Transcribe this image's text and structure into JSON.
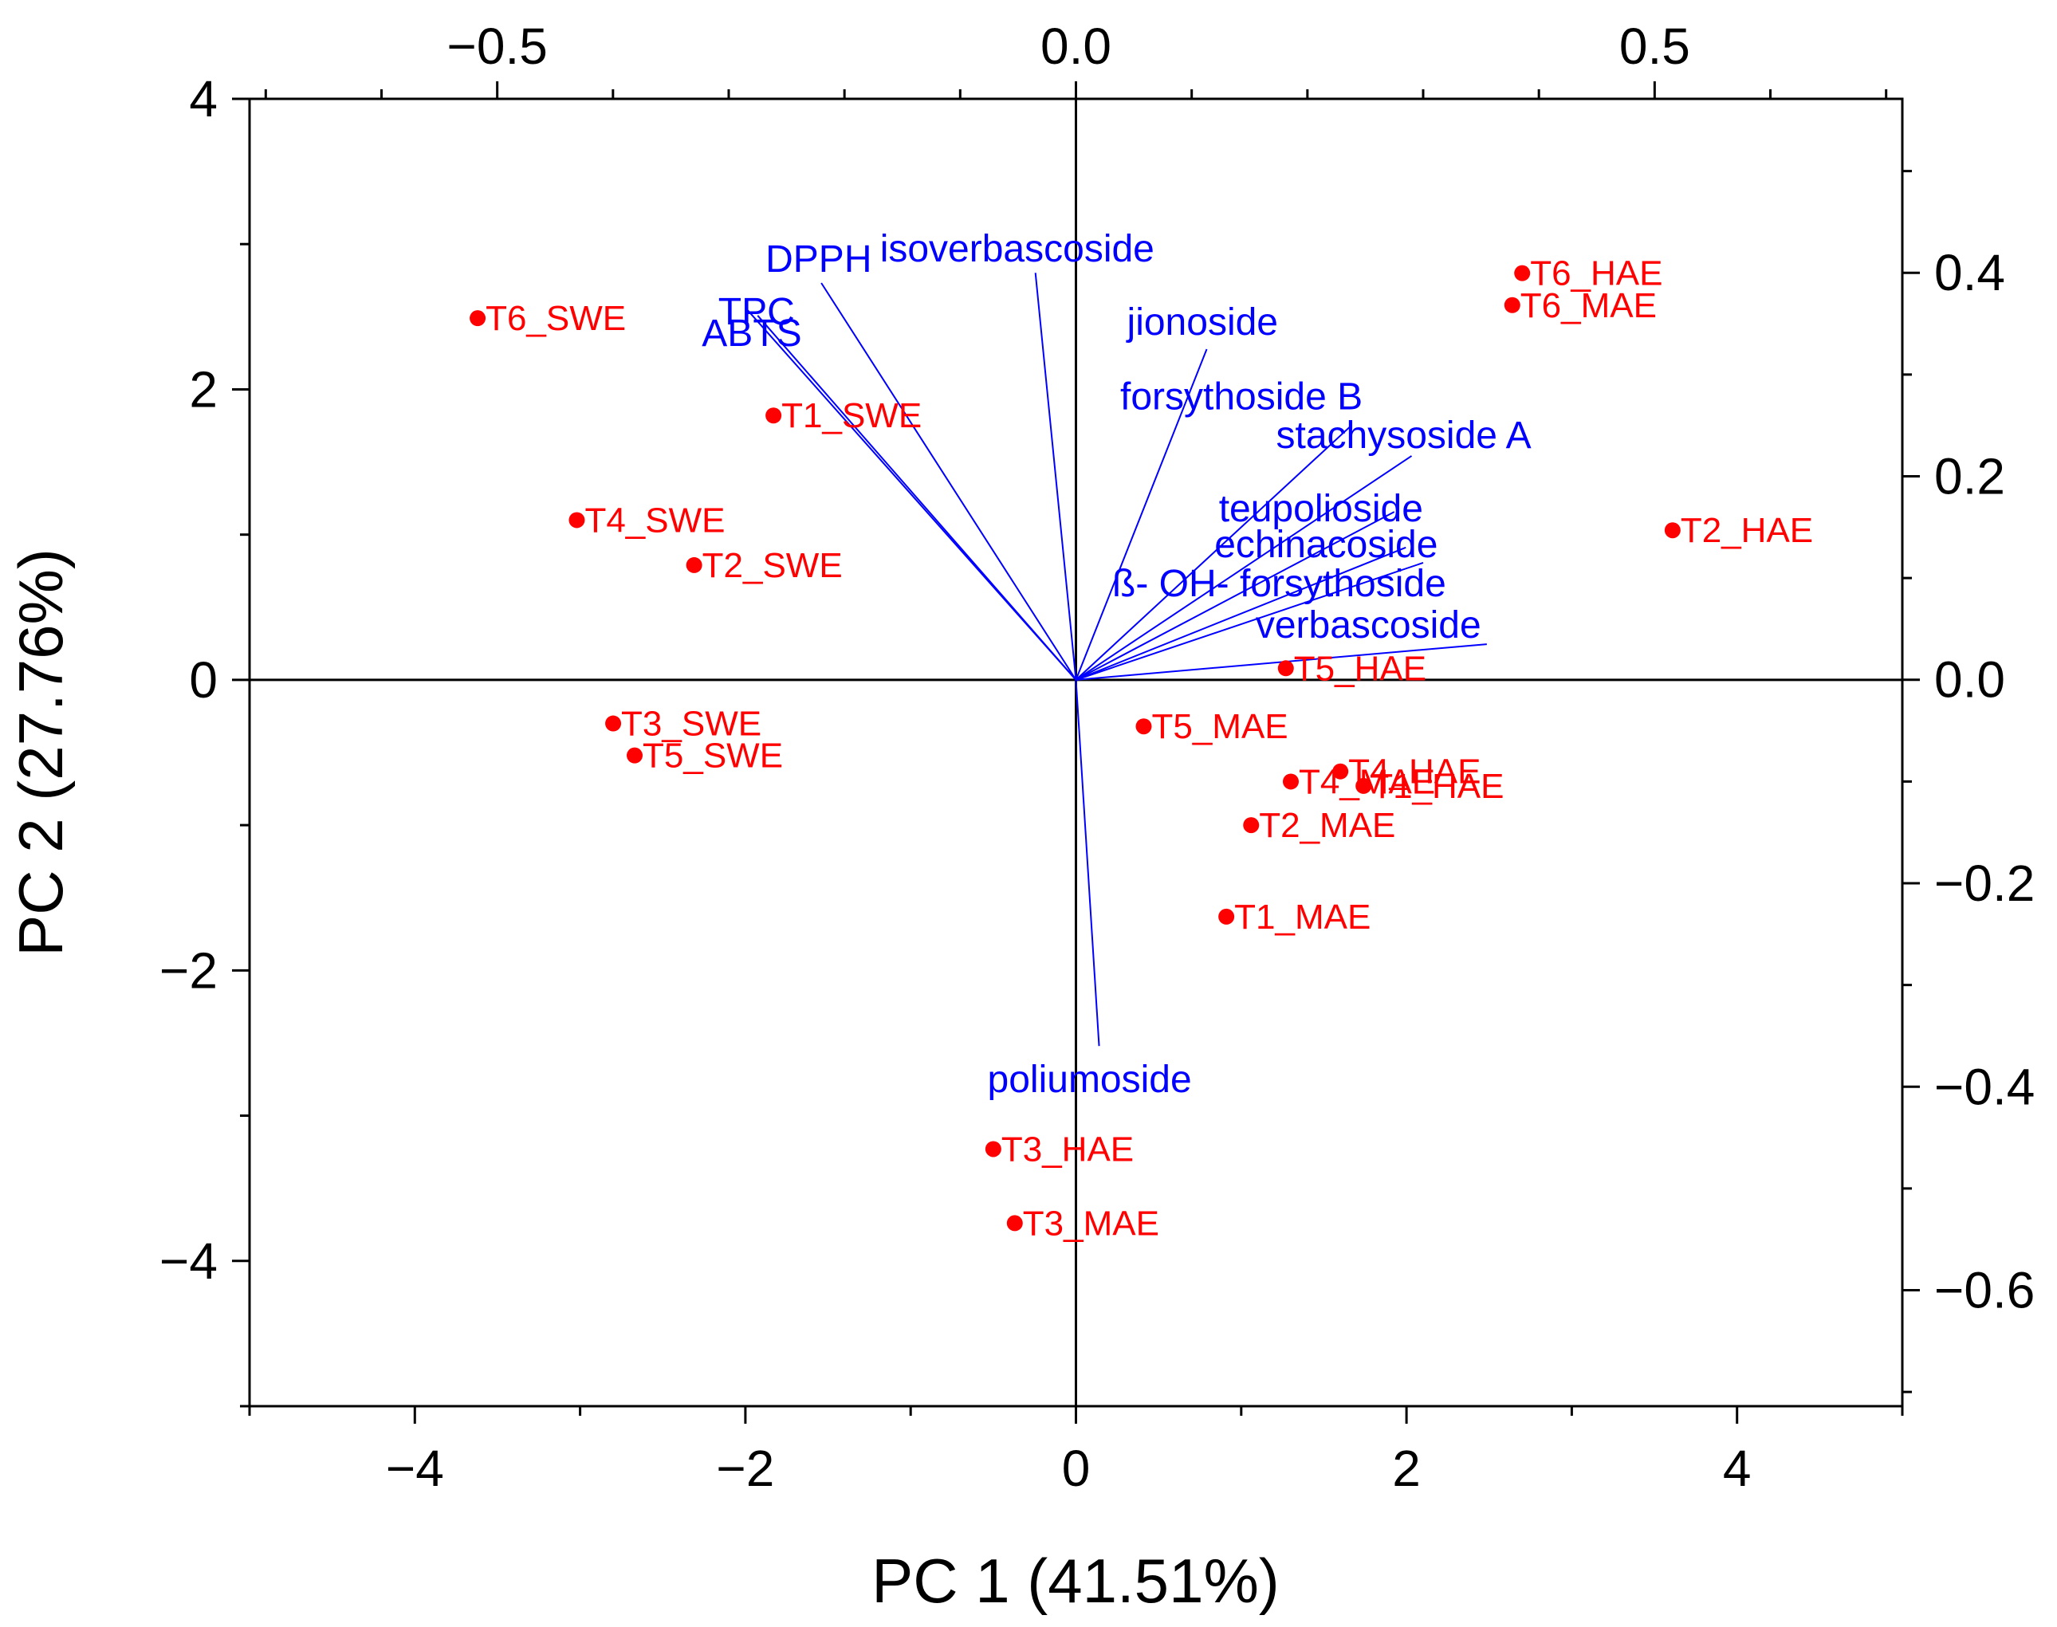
{
  "chart_data": {
    "type": "scatter",
    "subtype": "pca-biplot",
    "xlabel": "PC 1 (41.51%)",
    "ylabel": "PC 2 (27.76%)",
    "xlim": [
      -5,
      5
    ],
    "ylim": [
      -5,
      4
    ],
    "x_ticks": [
      -4,
      -2,
      0,
      2,
      4
    ],
    "x_tick_labels": [
      "−4",
      "−2",
      "0",
      "2",
      "4"
    ],
    "y_ticks": [
      -4,
      -2,
      0,
      2,
      4
    ],
    "y_tick_labels": [
      "−4",
      "−2",
      "0",
      "2",
      "4"
    ],
    "top_axis": {
      "lim": [
        -0.714,
        0.714
      ],
      "ticks": [
        -0.5,
        0.0,
        0.5
      ],
      "tick_labels": [
        "−0.5",
        "0.0",
        "0.5"
      ]
    },
    "right_axis": {
      "lim": [
        -0.714,
        0.571
      ],
      "ticks": [
        0.4,
        0.2,
        0.0,
        -0.2,
        -0.4,
        -0.6
      ],
      "tick_labels": [
        "0.4",
        "0.2",
        "0.0",
        "−0.2",
        "−0.4",
        "−0.6"
      ]
    },
    "grid": false,
    "colors": {
      "scores": "#ff0000",
      "loadings": "#0000ff",
      "axes": "#000000"
    },
    "scores": {
      "name": "samples",
      "points": [
        {
          "label": "T6_SWE",
          "x": -3.62,
          "y": 2.49
        },
        {
          "label": "T1_SWE",
          "x": -1.83,
          "y": 1.82
        },
        {
          "label": "T4_SWE",
          "x": -3.02,
          "y": 1.1
        },
        {
          "label": "T2_SWE",
          "x": -2.31,
          "y": 0.79
        },
        {
          "label": "T3_SWE",
          "x": -2.8,
          "y": -0.3
        },
        {
          "label": "T5_SWE",
          "x": -2.67,
          "y": -0.52
        },
        {
          "label": "T6_HAE",
          "x": 2.7,
          "y": 2.8
        },
        {
          "label": "T6_MAE",
          "x": 2.64,
          "y": 2.58
        },
        {
          "label": "T2_HAE",
          "x": 3.61,
          "y": 1.03
        },
        {
          "label": "T5_HAE",
          "x": 1.27,
          "y": 0.08
        },
        {
          "label": "T5_MAE",
          "x": 0.41,
          "y": -0.32
        },
        {
          "label": "T4_HAE",
          "x": 1.6,
          "y": -0.63
        },
        {
          "label": "T4_MAE",
          "x": 1.3,
          "y": -0.7
        },
        {
          "label": "T1_HAE",
          "x": 1.74,
          "y": -0.73
        },
        {
          "label": "T2_MAE",
          "x": 1.06,
          "y": -1.0
        },
        {
          "label": "T1_MAE",
          "x": 0.91,
          "y": -1.63
        },
        {
          "label": "T3_HAE",
          "x": -0.5,
          "y": -3.23
        },
        {
          "label": "T3_MAE",
          "x": -0.37,
          "y": -3.74
        }
      ]
    },
    "loadings": {
      "name": "variables",
      "vectors": [
        {
          "label": "DPPH",
          "x": -0.22,
          "y": 0.39
        },
        {
          "label": "TPC",
          "x": -0.285,
          "y": 0.365
        },
        {
          "label": "ABTS",
          "x": -0.275,
          "y": 0.358
        },
        {
          "label": "isoverbascoside",
          "x": -0.035,
          "y": 0.4
        },
        {
          "label": "jionoside",
          "x": 0.113,
          "y": 0.325
        },
        {
          "label": "forsythoside B",
          "x": 0.238,
          "y": 0.25
        },
        {
          "label": "stachysoside A",
          "x": 0.29,
          "y": 0.22
        },
        {
          "label": "teupolioside",
          "x": 0.275,
          "y": 0.165
        },
        {
          "label": "echinacoside",
          "x": 0.285,
          "y": 0.13
        },
        {
          "label": "ß- OH- forsythoside",
          "x": 0.3,
          "y": 0.115
        },
        {
          "label": "verbascoside",
          "x": 0.355,
          "y": 0.035
        },
        {
          "label": "poliumoside",
          "x": 0.02,
          "y": -0.36
        }
      ]
    }
  }
}
